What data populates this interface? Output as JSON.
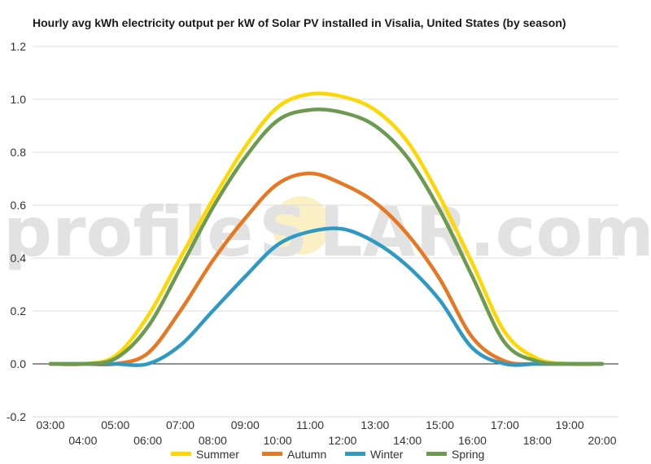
{
  "watermark": {
    "left": "profile",
    "sun_letter": "S",
    "right": "LAR.com"
  },
  "chart_data": {
    "type": "line",
    "title": "Hourly avg kWh electricity output per kW of Solar PV installed in Visalia, United States (by season)",
    "xlabel": "",
    "ylabel": "",
    "ylim": [
      -0.2,
      1.2
    ],
    "yticks": [
      "-0.2",
      "0.0",
      "0.2",
      "0.4",
      "0.6",
      "0.8",
      "1.0",
      "1.2"
    ],
    "ytick_values": [
      -0.2,
      0.0,
      0.2,
      0.4,
      0.6,
      0.8,
      1.0,
      1.2
    ],
    "x": [
      3,
      4,
      5,
      6,
      7,
      8,
      9,
      10,
      11,
      12,
      13,
      14,
      15,
      16,
      17,
      18,
      19,
      20
    ],
    "categories": [
      "03:00",
      "04:00",
      "05:00",
      "06:00",
      "07:00",
      "08:00",
      "09:00",
      "10:00",
      "11:00",
      "12:00",
      "13:00",
      "14:00",
      "15:00",
      "16:00",
      "17:00",
      "18:00",
      "19:00",
      "20:00"
    ],
    "grid": true,
    "legend": "bottom",
    "series": [
      {
        "name": "Summer",
        "color": "#FFD700",
        "values": [
          0.0,
          0.0,
          0.03,
          0.18,
          0.4,
          0.62,
          0.82,
          0.97,
          1.02,
          1.01,
          0.96,
          0.84,
          0.63,
          0.38,
          0.12,
          0.02,
          0.0,
          0.0
        ]
      },
      {
        "name": "Autumn",
        "color": "#E87722",
        "values": [
          0.0,
          0.0,
          0.0,
          0.04,
          0.2,
          0.39,
          0.55,
          0.68,
          0.72,
          0.68,
          0.61,
          0.49,
          0.32,
          0.1,
          0.01,
          0.0,
          0.0,
          0.0
        ]
      },
      {
        "name": "Winter",
        "color": "#2E9AC4",
        "values": [
          0.0,
          0.0,
          0.0,
          0.0,
          0.07,
          0.2,
          0.33,
          0.45,
          0.5,
          0.51,
          0.46,
          0.37,
          0.24,
          0.06,
          0.0,
          0.0,
          0.0,
          0.0
        ]
      },
      {
        "name": "Spring",
        "color": "#6B9A50",
        "values": [
          0.0,
          0.0,
          0.02,
          0.14,
          0.36,
          0.59,
          0.78,
          0.92,
          0.96,
          0.95,
          0.9,
          0.78,
          0.58,
          0.33,
          0.08,
          0.01,
          0.0,
          0.0
        ]
      }
    ]
  }
}
